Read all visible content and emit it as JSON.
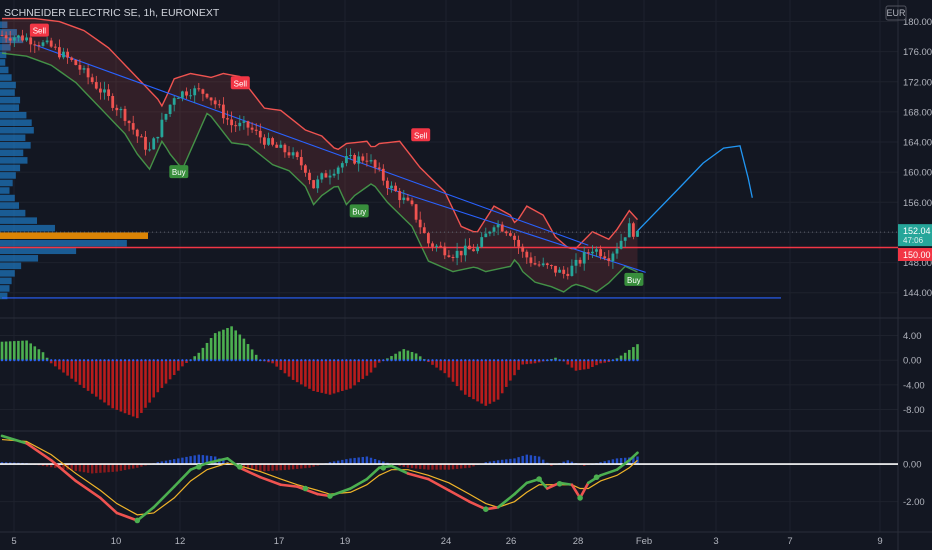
{
  "header": {
    "symbol_label": "SCHNEIDER ELECTRIC SE, 1h, EURONEXT",
    "currency": "EUR"
  },
  "colors": {
    "background": "#131722",
    "grid": "#1e222d",
    "axis_text": "#b2b5be",
    "up": "#26a69a",
    "down": "#ef5350",
    "trendline": "#2962ff",
    "support": "#f23645",
    "volume_profile": "#2196f3",
    "volume_profile_poc": "#ff9800",
    "supertrend_down": "#ef5350",
    "supertrend_up": "#4caf50",
    "forecast": "#2196f3",
    "sqz_pos": "#4caf50",
    "sqz_neg": "#b71c1c",
    "wave_fast": "#4caf50",
    "wave_slow": "#f0b429",
    "zero_line": "#ffffff",
    "buy_badge": "#388e3c",
    "sell_badge": "#f23645",
    "last_price_badge": "#26a69a",
    "support_badge": "#f23645"
  },
  "chart_data": [
    {
      "type": "candlestick",
      "panel": "price",
      "title": "SCHNEIDER ELECTRIC SE, 1h, EURONEXT",
      "x_tick_labels": [
        "5",
        "10",
        "12",
        "17",
        "19",
        "24",
        "26",
        "28",
        "Feb",
        "3",
        "7",
        "9"
      ],
      "y_ticks": [
        144,
        148,
        152,
        156,
        160,
        164,
        168,
        172,
        176,
        180
      ],
      "y_tick_labels": [
        "144.00",
        "148.00",
        "152.00",
        "156.00",
        "160.00",
        "164.00",
        "168.00",
        "172.00",
        "176.00",
        "180.00"
      ],
      "ylim": [
        142.5,
        181
      ],
      "close_path": [
        [
          0,
          178.2
        ],
        [
          6,
          177.8
        ],
        [
          12,
          176.6
        ],
        [
          18,
          174.3
        ],
        [
          24,
          170.9
        ],
        [
          30,
          167.5
        ],
        [
          33,
          164.8
        ],
        [
          36,
          162.8
        ],
        [
          42,
          170.2
        ],
        [
          46,
          170.9
        ],
        [
          50,
          170.5
        ],
        [
          56,
          166.3
        ],
        [
          60,
          166.0
        ],
        [
          66,
          163.4
        ],
        [
          70,
          162.6
        ],
        [
          74,
          160.5
        ],
        [
          76,
          158.1
        ],
        [
          78,
          159.3
        ],
        [
          84,
          161.6
        ],
        [
          89,
          161.9
        ],
        [
          94,
          158.4
        ],
        [
          100,
          155.2
        ],
        [
          104,
          150.6
        ],
        [
          110,
          149.2
        ],
        [
          116,
          149.9
        ],
        [
          120,
          153.3
        ],
        [
          124,
          152.1
        ],
        [
          127,
          149.2
        ],
        [
          130,
          147.8
        ],
        [
          134,
          147.2
        ],
        [
          137,
          146.5
        ],
        [
          140,
          147.7
        ],
        [
          144,
          149.9
        ],
        [
          148,
          148.9
        ],
        [
          150,
          150.2
        ],
        [
          153,
          152.7
        ],
        [
          155,
          151.5
        ]
      ],
      "max_x": 155,
      "last_price": 152.04,
      "last_price_label": "152.04",
      "last_price_sublabel": "47:06",
      "support_level": 150.0,
      "support_label": "150.00",
      "trendline_1": [
        [
          8,
          176.9
        ],
        [
          143,
          150.3
        ]
      ],
      "trendline_2": [
        [
          0,
          143.3
        ],
        [
          190,
          143.3
        ]
      ],
      "trendline_3": [
        [
          94,
          157.9
        ],
        [
          157,
          146.7
        ]
      ],
      "forecast_path": [
        [
          155,
          152.2
        ],
        [
          165,
          157.8
        ],
        [
          171,
          161.2
        ],
        [
          176,
          163.2
        ],
        [
          180,
          163.5
        ],
        [
          182,
          159.2
        ],
        [
          183,
          156.6
        ]
      ],
      "signals": [
        {
          "label": "Sell",
          "kind": "sell",
          "x": 9,
          "y": 178.8
        },
        {
          "label": "Sell",
          "kind": "sell",
          "x": 58,
          "y": 171.8
        },
        {
          "label": "Sell",
          "kind": "sell",
          "x": 102,
          "y": 164.9
        },
        {
          "label": "Buy",
          "kind": "buy",
          "x": 43,
          "y": 160.0
        },
        {
          "label": "Buy",
          "kind": "buy",
          "x": 87,
          "y": 154.8
        },
        {
          "label": "Buy",
          "kind": "buy",
          "x": 154,
          "y": 145.7
        }
      ],
      "volume_profile": [
        [
          179.5,
          7
        ],
        [
          178.5,
          16
        ],
        [
          177.5,
          22
        ],
        [
          176.5,
          10
        ],
        [
          175.5,
          6
        ],
        [
          174.5,
          5
        ],
        [
          173.5,
          8
        ],
        [
          172.5,
          11
        ],
        [
          171.5,
          15
        ],
        [
          170.5,
          14
        ],
        [
          169.5,
          19
        ],
        [
          168.5,
          18
        ],
        [
          167.5,
          25
        ],
        [
          166.5,
          30
        ],
        [
          165.5,
          32
        ],
        [
          164.5,
          24
        ],
        [
          163.5,
          29
        ],
        [
          162.5,
          22
        ],
        [
          161.5,
          26
        ],
        [
          160.5,
          19
        ],
        [
          159.5,
          15
        ],
        [
          158.5,
          12
        ],
        [
          157.5,
          9
        ],
        [
          156.5,
          14
        ],
        [
          155.5,
          18
        ],
        [
          154.5,
          24
        ],
        [
          153.5,
          35
        ],
        [
          152.5,
          52
        ],
        [
          151.5,
          140
        ],
        [
          150.5,
          120
        ],
        [
          149.5,
          72
        ],
        [
          148.5,
          36
        ],
        [
          147.5,
          20
        ],
        [
          146.5,
          14
        ],
        [
          145.5,
          11
        ],
        [
          144.5,
          9
        ],
        [
          143.5,
          7
        ]
      ],
      "volume_profile_poc": 151.5
    },
    {
      "type": "histogram",
      "panel": "momentum",
      "y_ticks": [
        4,
        0,
        -4,
        -8
      ],
      "y_tick_labels": [
        "4.00",
        "0.00",
        "-4.00",
        "-8.00"
      ],
      "ylim": [
        -11,
        6.2
      ],
      "keypoints": [
        [
          0,
          3.0
        ],
        [
          6,
          3.2
        ],
        [
          10,
          1.3
        ],
        [
          12,
          -0.5
        ],
        [
          20,
          -4.5
        ],
        [
          27,
          -7.8
        ],
        [
          33,
          -9.4
        ],
        [
          38,
          -5.2
        ],
        [
          44,
          -1.0
        ],
        [
          48,
          1.2
        ],
        [
          52,
          4.4
        ],
        [
          56,
          5.5
        ],
        [
          59,
          3.5
        ],
        [
          63,
          0.0
        ],
        [
          66,
          -0.5
        ],
        [
          71,
          -3.2
        ],
        [
          76,
          -5.0
        ],
        [
          80,
          -5.6
        ],
        [
          85,
          -4.6
        ],
        [
          90,
          -2.0
        ],
        [
          92,
          -0.4
        ],
        [
          94,
          0.3
        ],
        [
          98,
          1.8
        ],
        [
          101,
          1.1
        ],
        [
          104,
          -0.3
        ],
        [
          108,
          -2.1
        ],
        [
          113,
          -5.6
        ],
        [
          118,
          -7.4
        ],
        [
          121,
          -6.4
        ],
        [
          124,
          -3.3
        ],
        [
          127,
          -0.7
        ],
        [
          130,
          -0.5
        ],
        [
          132,
          -0.2
        ],
        [
          135,
          0.4
        ],
        [
          137,
          -0.2
        ],
        [
          140,
          -1.7
        ],
        [
          143,
          -1.4
        ],
        [
          146,
          -0.5
        ],
        [
          148,
          -0.3
        ],
        [
          150,
          0.3
        ],
        [
          152,
          1.2
        ],
        [
          155,
          2.6
        ]
      ]
    },
    {
      "type": "line+histogram",
      "panel": "oscillator",
      "y_ticks": [
        0,
        -2
      ],
      "y_tick_labels": [
        "0.00",
        "-2.00"
      ],
      "ylim": [
        -3.4,
        1.65
      ],
      "fast_line": [
        [
          0,
          1.5
        ],
        [
          6,
          1.1
        ],
        [
          12,
          0.2
        ],
        [
          18,
          -0.9
        ],
        [
          24,
          -1.8
        ],
        [
          28,
          -2.6
        ],
        [
          33,
          -3.0
        ],
        [
          37,
          -2.3
        ],
        [
          42,
          -1.2
        ],
        [
          46,
          -0.3
        ],
        [
          50,
          0.05
        ],
        [
          55,
          0.3
        ],
        [
          58,
          -0.2
        ],
        [
          63,
          -0.7
        ],
        [
          68,
          -1.1
        ],
        [
          72,
          -1.2
        ],
        [
          77,
          -1.6
        ],
        [
          80,
          -1.7
        ],
        [
          85,
          -1.3
        ],
        [
          89,
          -0.8
        ],
        [
          92,
          -0.2
        ],
        [
          95,
          -0.1
        ],
        [
          99,
          -0.5
        ],
        [
          104,
          -0.8
        ],
        [
          109,
          -1.4
        ],
        [
          114,
          -2.0
        ],
        [
          118,
          -2.4
        ],
        [
          121,
          -2.3
        ],
        [
          125,
          -1.6
        ],
        [
          128,
          -1.0
        ],
        [
          131,
          -0.8
        ],
        [
          133,
          -1.3
        ],
        [
          136,
          -1.0
        ],
        [
          139,
          -1.1
        ],
        [
          141,
          -1.8
        ],
        [
          143,
          -1.0
        ],
        [
          146,
          -0.6
        ],
        [
          150,
          -0.3
        ],
        [
          153,
          0.2
        ],
        [
          155,
          0.6
        ]
      ],
      "slow_line": [
        [
          0,
          1.3
        ],
        [
          6,
          1.2
        ],
        [
          12,
          0.5
        ],
        [
          18,
          -0.5
        ],
        [
          24,
          -1.4
        ],
        [
          28,
          -2.1
        ],
        [
          33,
          -2.7
        ],
        [
          37,
          -2.6
        ],
        [
          42,
          -1.8
        ],
        [
          46,
          -0.9
        ],
        [
          50,
          -0.3
        ],
        [
          55,
          0.05
        ],
        [
          58,
          -0.1
        ],
        [
          63,
          -0.4
        ],
        [
          68,
          -0.8
        ],
        [
          72,
          -1.1
        ],
        [
          77,
          -1.4
        ],
        [
          80,
          -1.6
        ],
        [
          85,
          -1.5
        ],
        [
          89,
          -1.1
        ],
        [
          92,
          -0.6
        ],
        [
          95,
          -0.3
        ],
        [
          99,
          -0.3
        ],
        [
          104,
          -0.6
        ],
        [
          109,
          -1.0
        ],
        [
          114,
          -1.6
        ],
        [
          118,
          -2.1
        ],
        [
          121,
          -2.3
        ],
        [
          125,
          -2.0
        ],
        [
          128,
          -1.5
        ],
        [
          131,
          -1.1
        ],
        [
          133,
          -1.1
        ],
        [
          136,
          -1.1
        ],
        [
          139,
          -1.1
        ],
        [
          141,
          -1.3
        ],
        [
          143,
          -1.3
        ],
        [
          146,
          -0.9
        ],
        [
          150,
          -0.6
        ],
        [
          153,
          -0.2
        ],
        [
          155,
          0.2
        ]
      ],
      "cross_points": [
        [
          33,
          -3.0
        ],
        [
          48,
          -0.15
        ],
        [
          58,
          -0.15
        ],
        [
          74,
          -1.3
        ],
        [
          80,
          -1.7
        ],
        [
          93,
          -0.2
        ],
        [
          118,
          -2.4
        ],
        [
          131,
          -0.8
        ],
        [
          136,
          -1.05
        ],
        [
          141,
          -1.8
        ],
        [
          145,
          -0.7
        ]
      ],
      "bar_keypoints": [
        [
          0,
          0.1
        ],
        [
          6,
          0.05
        ],
        [
          10,
          -0.1
        ],
        [
          16,
          -0.3
        ],
        [
          22,
          -0.5
        ],
        [
          28,
          -0.4
        ],
        [
          33,
          -0.2
        ],
        [
          38,
          0.1
        ],
        [
          43,
          0.3
        ],
        [
          48,
          0.5
        ],
        [
          52,
          0.4
        ],
        [
          55,
          0.1
        ],
        [
          58,
          -0.2
        ],
        [
          63,
          -0.4
        ],
        [
          70,
          -0.3
        ],
        [
          75,
          -0.2
        ],
        [
          80,
          0.1
        ],
        [
          85,
          0.3
        ],
        [
          89,
          0.4
        ],
        [
          92,
          0.2
        ],
        [
          95,
          0.0
        ],
        [
          99,
          -0.2
        ],
        [
          104,
          -0.3
        ],
        [
          109,
          -0.3
        ],
        [
          114,
          -0.2
        ],
        [
          118,
          0.1
        ],
        [
          121,
          0.2
        ],
        [
          125,
          0.3
        ],
        [
          128,
          0.5
        ],
        [
          131,
          0.4
        ],
        [
          134,
          -0.1
        ],
        [
          138,
          0.2
        ],
        [
          142,
          -0.1
        ],
        [
          146,
          0.1
        ],
        [
          150,
          0.3
        ],
        [
          153,
          0.35
        ],
        [
          155,
          0.4
        ]
      ]
    }
  ]
}
